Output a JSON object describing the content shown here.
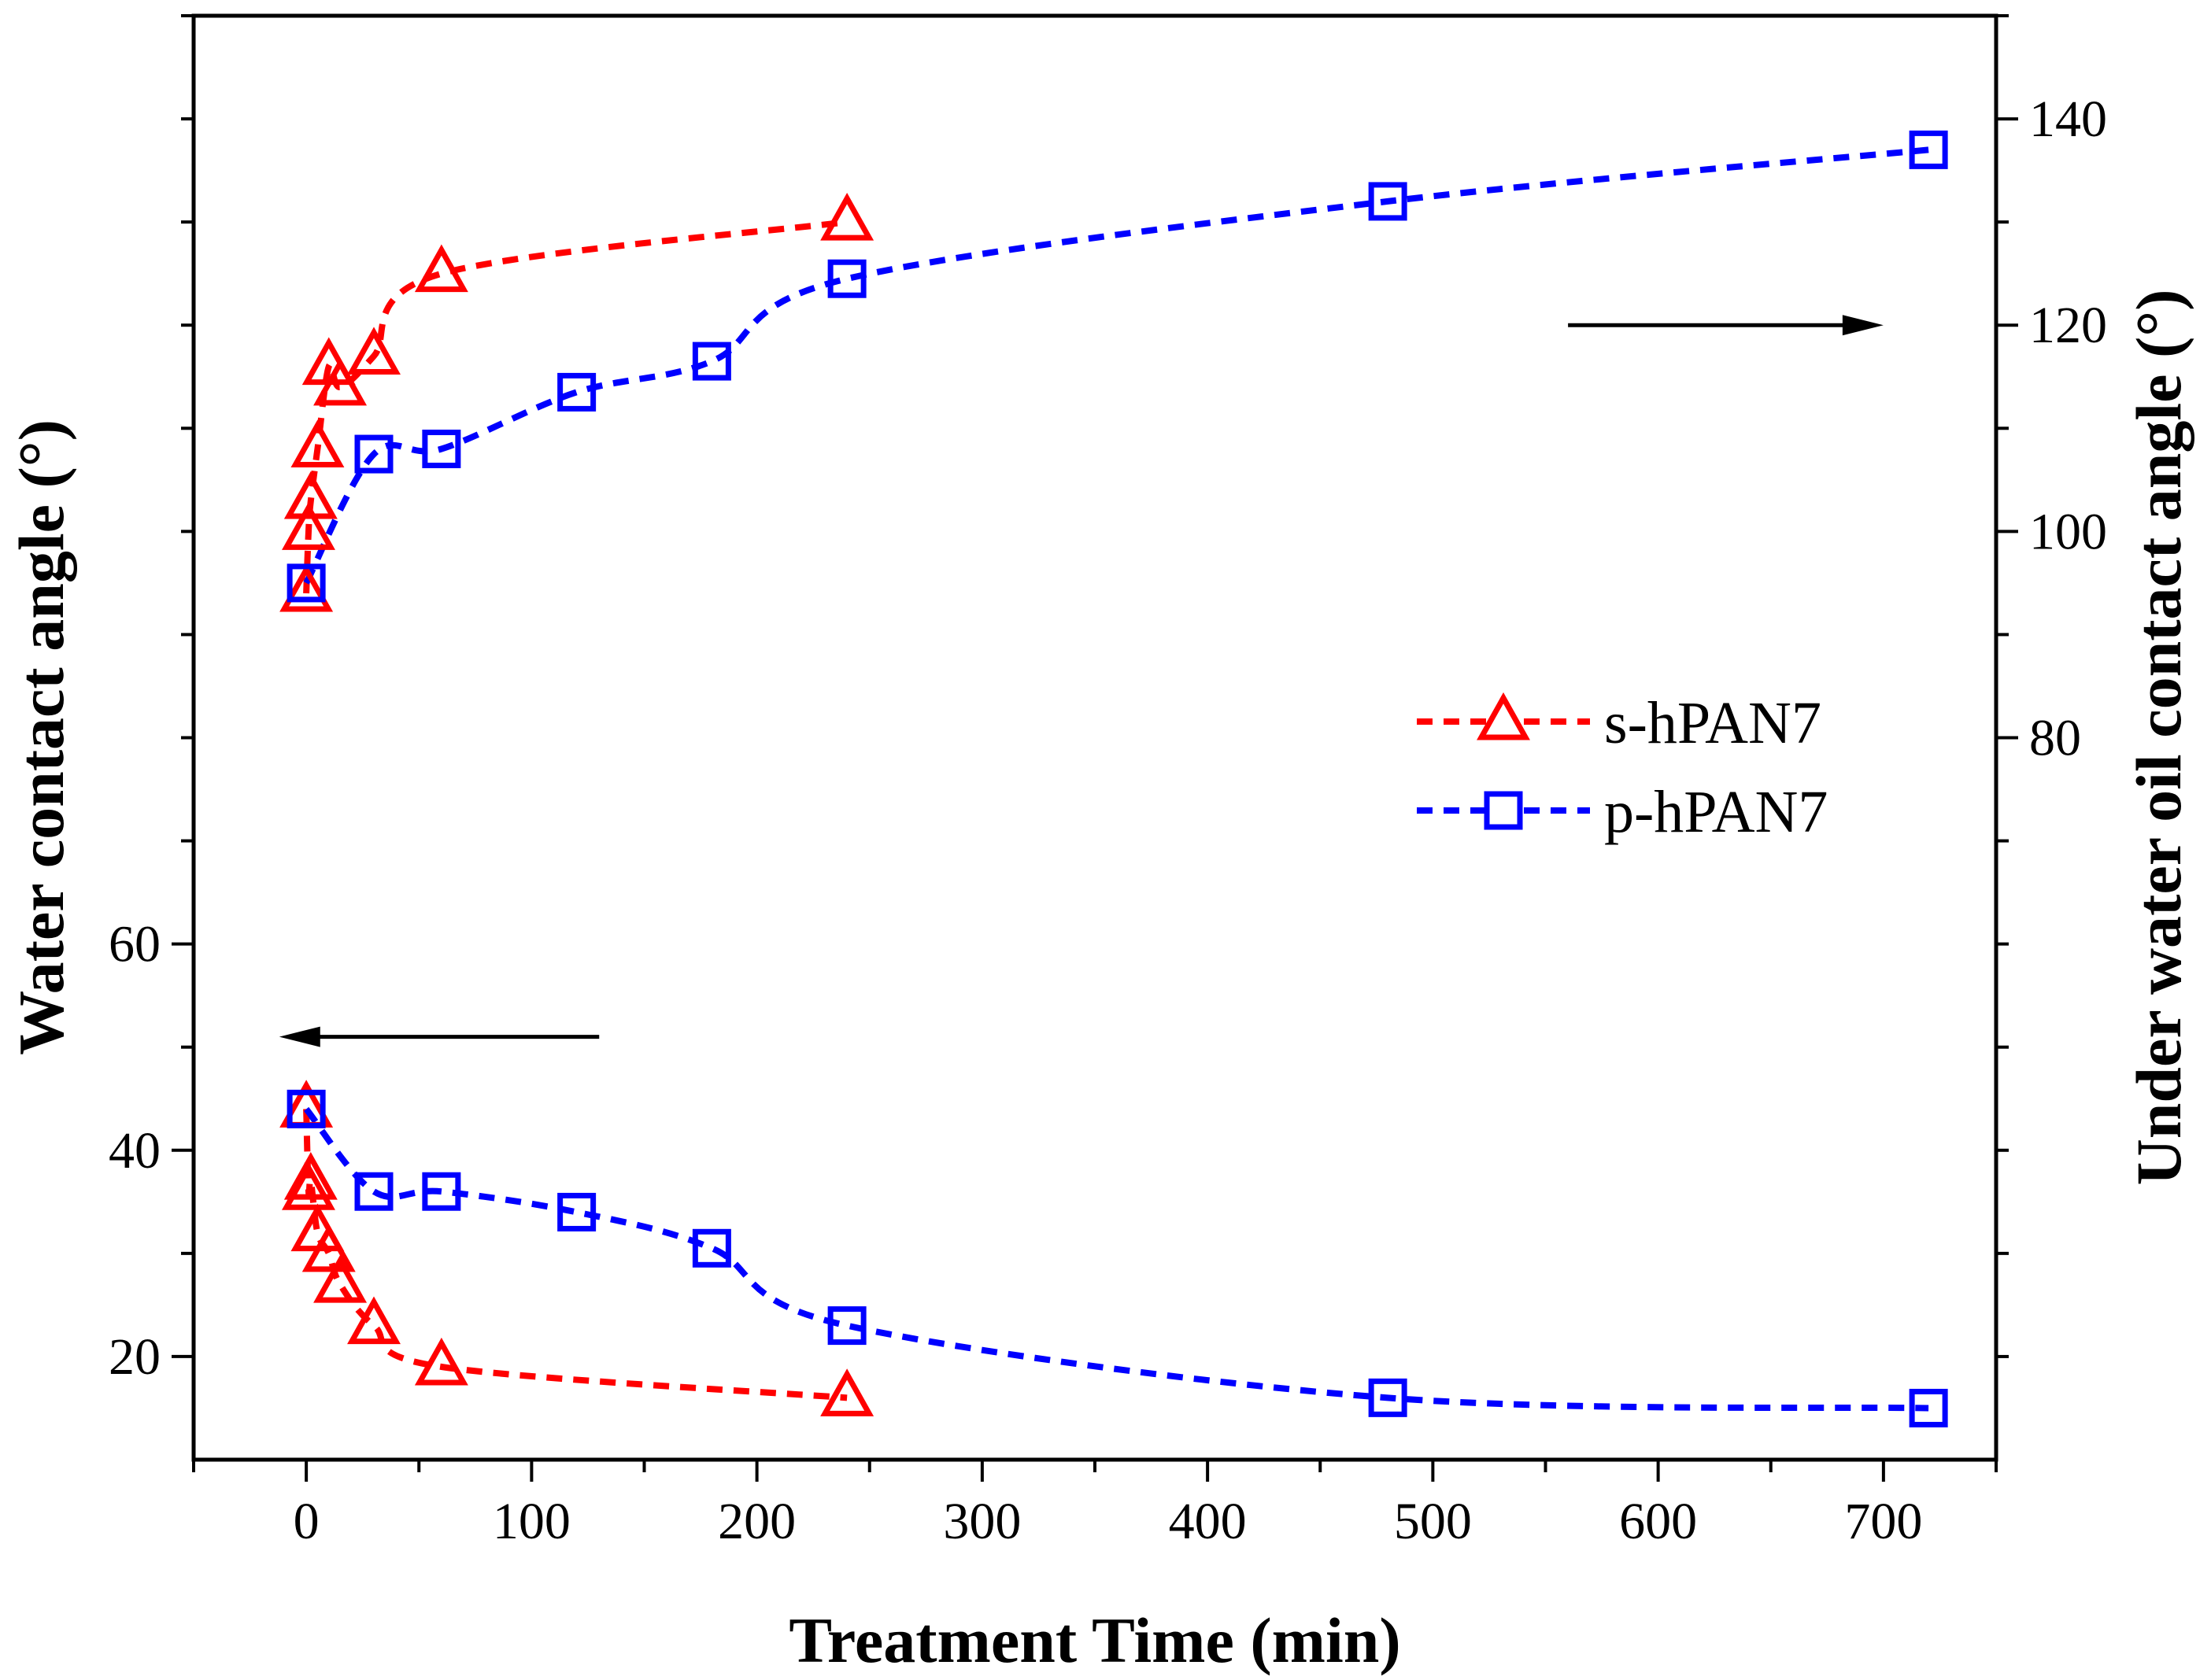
{
  "chart_data": {
    "type": "line",
    "xlabel": "Treatment Time (min)",
    "ylabel_left": "Water contact angle (°)",
    "ylabel_right": "Under water oil contact angle (°)",
    "xlim": [
      -50,
      750
    ],
    "ylim_left": [
      10,
      150
    ],
    "ylim_right": [
      10,
      150
    ],
    "x_ticks": [
      0,
      100,
      200,
      300,
      400,
      500,
      600,
      700
    ],
    "left_tick_labels": [
      20,
      40,
      60
    ],
    "right_tick_labels": [
      80,
      100,
      120,
      140
    ],
    "left_minor_ticks": [
      20,
      30,
      40,
      50,
      60,
      70,
      80,
      90,
      100,
      110,
      120,
      130,
      140,
      150
    ],
    "right_minor_ticks": [
      20,
      30,
      40,
      50,
      60,
      70,
      80,
      90,
      100,
      110,
      120,
      130,
      140,
      150
    ],
    "legend_position": "center-right",
    "arrows": [
      {
        "direction": "left",
        "from_x": 130,
        "to_x": -12,
        "y": 51
      },
      {
        "direction": "right",
        "from_x": 560,
        "to_x": 700,
        "y": 120
      }
    ],
    "series": [
      {
        "name": "s-hPAN7",
        "color": "#ff0000",
        "marker": "triangle",
        "water": {
          "x": [
            0,
            1,
            2,
            5,
            10,
            15,
            30,
            60,
            240
          ],
          "y": [
            44,
            36,
            37,
            32,
            30,
            27,
            23,
            19,
            16
          ]
        },
        "oil": {
          "x": [
            0,
            1,
            2,
            5,
            10,
            15,
            30,
            60,
            240
          ],
          "y": [
            94,
            100,
            103,
            108,
            116,
            114,
            117,
            125,
            130
          ]
        }
      },
      {
        "name": "p-hPAN7",
        "color": "#0000ff",
        "marker": "square",
        "water": {
          "x": [
            0,
            30,
            60,
            120,
            180,
            240,
            480,
            720
          ],
          "y": [
            44,
            36,
            36,
            34,
            30.5,
            23,
            16,
            15
          ]
        },
        "oil": {
          "x": [
            0,
            30,
            60,
            120,
            180,
            240,
            480,
            720
          ],
          "y": [
            95,
            107.5,
            108,
            113.5,
            116.5,
            124.5,
            132,
            137
          ]
        }
      }
    ]
  }
}
